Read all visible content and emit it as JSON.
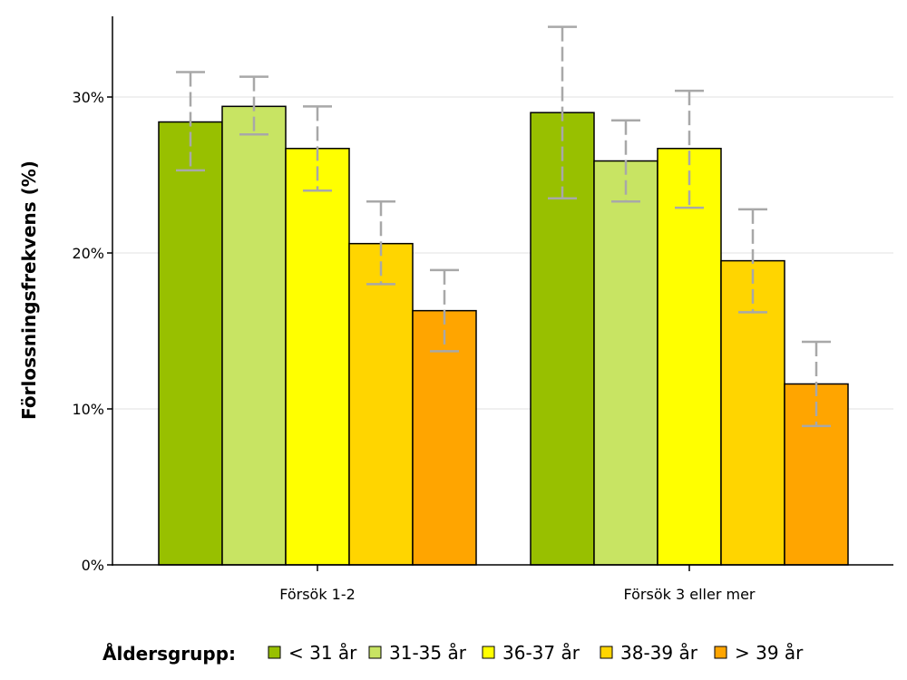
{
  "chart_data": {
    "type": "bar",
    "ylabel": "Förlossningsfrekvens (%)",
    "ylim": [
      0,
      35
    ],
    "yticks": [
      0,
      10,
      20,
      30
    ],
    "ytick_labels": [
      "0%",
      "10%",
      "20%",
      "30%"
    ],
    "gridlines": true,
    "categories": [
      "Försök 1-2",
      "Försök 3 eller mer"
    ],
    "legend": {
      "title": "Åldersgrupp:",
      "placement": "bottom"
    },
    "series": [
      {
        "name": "< 31 år",
        "color": "#98c000",
        "values": [
          28.4,
          29.0
        ],
        "err_low": [
          25.3,
          23.5
        ],
        "err_high": [
          31.6,
          34.5
        ]
      },
      {
        "name": "31-35 år",
        "color": "#c8e463",
        "values": [
          29.4,
          25.9
        ],
        "err_low": [
          27.6,
          23.3
        ],
        "err_high": [
          31.3,
          28.5
        ]
      },
      {
        "name": "36-37 år",
        "color": "#ffff00",
        "values": [
          26.7,
          26.7
        ],
        "err_low": [
          24.0,
          22.9
        ],
        "err_high": [
          29.4,
          30.4
        ]
      },
      {
        "name": "38-39 år",
        "color": "#ffd500",
        "values": [
          20.6,
          19.5
        ],
        "err_low": [
          18.0,
          16.2
        ],
        "err_high": [
          23.3,
          22.8
        ]
      },
      {
        "name": "> 39 år",
        "color": "#ffa500",
        "values": [
          16.3,
          11.6
        ],
        "err_low": [
          13.7,
          8.9
        ],
        "err_high": [
          18.9,
          14.3
        ]
      }
    ]
  }
}
